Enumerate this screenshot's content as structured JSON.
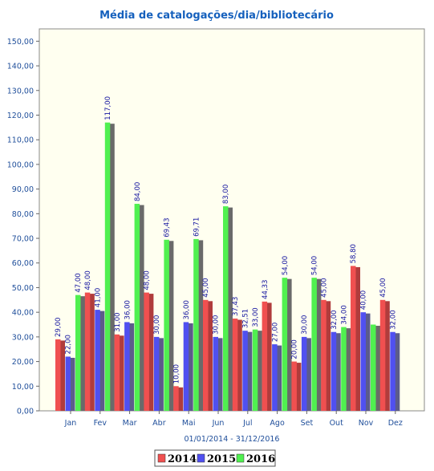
{
  "chart_data": {
    "type": "bar",
    "title": "Média de catalogações/dia/bibliotecário",
    "subtitle": "01/01/2014 - 31/12/2016",
    "categories": [
      "Jan",
      "Fev",
      "Mar",
      "Abr",
      "Mai",
      "Jun",
      "Jul",
      "Ago",
      "Set",
      "Out",
      "Nov",
      "Dez"
    ],
    "series": [
      {
        "name": "2014",
        "color": "#f05050",
        "shade": "#b03c3c",
        "values": [
          29,
          48,
          31,
          48,
          10,
          45,
          37.43,
          44.33,
          20,
          45,
          58.8,
          45
        ],
        "labels": [
          "29,00",
          "48,00",
          "31,00",
          "48,00",
          "10,00",
          "45,00",
          "37,43",
          "44,33",
          "20,00",
          "45,00",
          "58,80",
          "45,00"
        ]
      },
      {
        "name": "2015",
        "color": "#5050f0",
        "shade": "#5c5c8a",
        "values": [
          22,
          41,
          36,
          30,
          36,
          30,
          32.51,
          27,
          30,
          32,
          40,
          32
        ],
        "labels": [
          "22,00",
          "41,00",
          "36,00",
          "30,00",
          "36,00",
          "30,00",
          "32,51",
          "27,00",
          "30,00",
          "32,00",
          "40,00",
          "32,00"
        ]
      },
      {
        "name": "2016",
        "color": "#50f050",
        "shade": "#6a6a6a",
        "values": [
          47,
          117,
          84,
          69.43,
          69.71,
          83,
          33,
          54,
          54,
          34,
          35,
          null
        ],
        "labels": [
          "47,00",
          "117,00",
          "84,00",
          "69,43",
          "69,71",
          "83,00",
          "33,00",
          "54,00",
          "54,00",
          "34,00",
          "",
          ""
        ]
      }
    ],
    "ylim": [
      0,
      155
    ],
    "yticks": [
      0,
      10,
      20,
      30,
      40,
      50,
      60,
      70,
      80,
      90,
      100,
      110,
      120,
      130,
      140,
      150
    ],
    "ytick_labels": [
      "0,00",
      "10,00",
      "20,00",
      "30,00",
      "40,00",
      "50,00",
      "60,00",
      "70,00",
      "80,00",
      "90,00",
      "100,00",
      "110,00",
      "120,00",
      "130,00",
      "140,00",
      "150,00"
    ],
    "legend_position": "bottom-center",
    "plot_background": "#fffff0",
    "grid": false
  }
}
